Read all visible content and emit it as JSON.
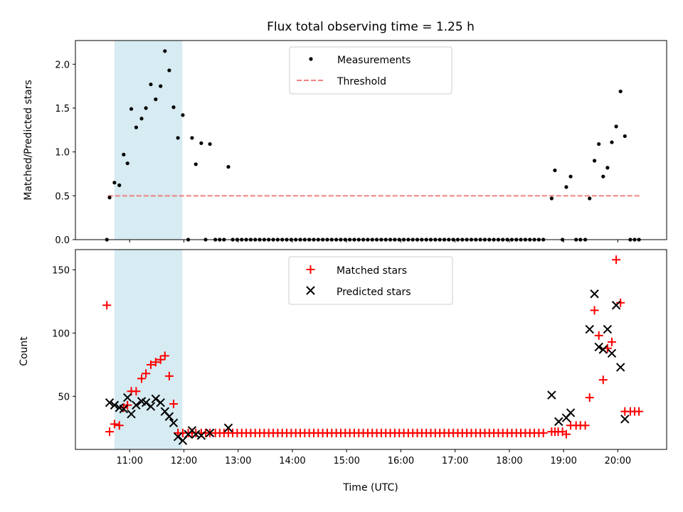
{
  "title": "Flux total observing time = 1.25 h",
  "shade": {
    "start": 10.72,
    "end": 11.97,
    "color": "#add8e6"
  },
  "top": {
    "ylabel": "Matched/Predicted stars",
    "ylim": [
      0,
      2.27
    ],
    "yticks": [
      0.0,
      0.5,
      1.0,
      1.5,
      2.0
    ],
    "ytick_labels": [
      "0.0",
      "0.5",
      "1.0",
      "1.5",
      "2.0"
    ],
    "legend": {
      "measurements": "Measurements",
      "threshold": "Threshold"
    },
    "threshold": {
      "value": 0.5,
      "x_range": [
        10.6,
        20.4
      ],
      "color": "#f08080"
    },
    "points": [
      [
        10.58,
        0.0
      ],
      [
        10.63,
        0.48
      ],
      [
        10.72,
        0.65
      ],
      [
        10.81,
        0.62
      ],
      [
        10.89,
        0.97
      ],
      [
        10.96,
        0.87
      ],
      [
        11.03,
        1.49
      ],
      [
        11.12,
        1.28
      ],
      [
        11.22,
        1.38
      ],
      [
        11.3,
        1.5
      ],
      [
        11.39,
        1.77
      ],
      [
        11.48,
        1.6
      ],
      [
        11.57,
        1.75
      ],
      [
        11.65,
        2.15
      ],
      [
        11.73,
        1.93
      ],
      [
        11.81,
        1.51
      ],
      [
        11.89,
        1.16
      ],
      [
        11.98,
        1.42
      ],
      [
        12.08,
        0.0
      ],
      [
        12.15,
        1.16
      ],
      [
        12.22,
        0.86
      ],
      [
        12.32,
        1.1
      ],
      [
        12.4,
        0.0
      ],
      [
        12.48,
        1.09
      ],
      [
        12.58,
        0.0
      ],
      [
        12.66,
        0.0
      ],
      [
        12.74,
        0.0
      ],
      [
        12.82,
        0.83
      ],
      [
        18.78,
        0.47
      ],
      [
        18.84,
        0.79
      ],
      [
        18.98,
        0.0
      ],
      [
        19.05,
        0.6
      ],
      [
        19.13,
        0.72
      ],
      [
        19.23,
        0.0
      ],
      [
        19.31,
        0.0
      ],
      [
        19.4,
        0.0
      ],
      [
        19.48,
        0.47
      ],
      [
        19.57,
        0.9
      ],
      [
        19.65,
        1.09
      ],
      [
        19.73,
        0.72
      ],
      [
        19.81,
        0.82
      ],
      [
        19.89,
        1.11
      ],
      [
        19.97,
        1.29
      ],
      [
        20.05,
        1.69
      ],
      [
        20.13,
        1.18
      ],
      [
        20.23,
        0.0
      ],
      [
        20.31,
        0.0
      ],
      [
        20.39,
        0.0
      ]
    ],
    "zero_fill": {
      "start": 12.9,
      "end": 18.7,
      "step": 0.083,
      "value": 0.0
    }
  },
  "bottom": {
    "ylabel": "Count",
    "xlabel": "Time (UTC)",
    "ylim": [
      8,
      166
    ],
    "yticks": [
      50,
      100,
      150
    ],
    "ytick_labels": [
      "50",
      "100",
      "150"
    ],
    "legend": {
      "matched": "Matched stars",
      "predicted": "Predicted stars"
    },
    "matched": [
      [
        10.58,
        122
      ],
      [
        10.63,
        22
      ],
      [
        10.72,
        28
      ],
      [
        10.81,
        27
      ],
      [
        10.89,
        41
      ],
      [
        10.96,
        43
      ],
      [
        11.03,
        54
      ],
      [
        11.12,
        54
      ],
      [
        11.22,
        64
      ],
      [
        11.3,
        68
      ],
      [
        11.39,
        75
      ],
      [
        11.48,
        77
      ],
      [
        11.57,
        79
      ],
      [
        11.65,
        82
      ],
      [
        11.73,
        66
      ],
      [
        11.81,
        44
      ],
      [
        11.89,
        21
      ],
      [
        11.98,
        21
      ],
      [
        12.08,
        21
      ],
      [
        12.15,
        21
      ],
      [
        12.22,
        21
      ],
      [
        12.32,
        21
      ],
      [
        12.4,
        21
      ],
      [
        12.48,
        21
      ],
      [
        12.58,
        21
      ],
      [
        12.66,
        21
      ],
      [
        12.74,
        21
      ],
      [
        12.82,
        21
      ],
      [
        18.78,
        22
      ],
      [
        18.84,
        22
      ],
      [
        18.9,
        22
      ],
      [
        18.98,
        22
      ],
      [
        19.05,
        20
      ],
      [
        19.13,
        27
      ],
      [
        19.23,
        27
      ],
      [
        19.31,
        27
      ],
      [
        19.4,
        27
      ],
      [
        19.48,
        49
      ],
      [
        19.57,
        118
      ],
      [
        19.65,
        98
      ],
      [
        19.73,
        63
      ],
      [
        19.81,
        88
      ],
      [
        19.89,
        93
      ],
      [
        19.97,
        158
      ],
      [
        20.05,
        124
      ],
      [
        20.13,
        38
      ],
      [
        20.23,
        38
      ],
      [
        20.31,
        38
      ],
      [
        20.39,
        38
      ]
    ],
    "matched_fill": {
      "start": 12.9,
      "end": 18.7,
      "step": 0.083,
      "value": 21
    },
    "predicted": [
      [
        10.63,
        45
      ],
      [
        10.72,
        43
      ],
      [
        10.81,
        41
      ],
      [
        10.89,
        40
      ],
      [
        10.96,
        49
      ],
      [
        11.03,
        36
      ],
      [
        11.12,
        43
      ],
      [
        11.22,
        46
      ],
      [
        11.3,
        45
      ],
      [
        11.39,
        42
      ],
      [
        11.48,
        48
      ],
      [
        11.57,
        45
      ],
      [
        11.65,
        38
      ],
      [
        11.73,
        34
      ],
      [
        11.81,
        29
      ],
      [
        11.89,
        18
      ],
      [
        11.98,
        15
      ],
      [
        12.08,
        20
      ],
      [
        12.15,
        23
      ],
      [
        12.22,
        20
      ],
      [
        12.32,
        19
      ],
      [
        12.48,
        21
      ],
      [
        12.82,
        25
      ],
      [
        18.78,
        51
      ],
      [
        18.91,
        30
      ],
      [
        19.05,
        33
      ],
      [
        19.13,
        37
      ],
      [
        19.48,
        103
      ],
      [
        19.57,
        131
      ],
      [
        19.65,
        89
      ],
      [
        19.73,
        87
      ],
      [
        19.81,
        103
      ],
      [
        19.89,
        84
      ],
      [
        19.97,
        122
      ],
      [
        20.05,
        73
      ],
      [
        20.13,
        32
      ]
    ]
  },
  "xlim": [
    10.0,
    20.9
  ],
  "xticks": [
    11,
    12,
    13,
    14,
    15,
    16,
    17,
    18,
    19,
    20
  ],
  "xtick_labels": [
    "11:00",
    "12:00",
    "13:00",
    "14:00",
    "15:00",
    "16:00",
    "17:00",
    "18:00",
    "19:00",
    "20:00"
  ]
}
